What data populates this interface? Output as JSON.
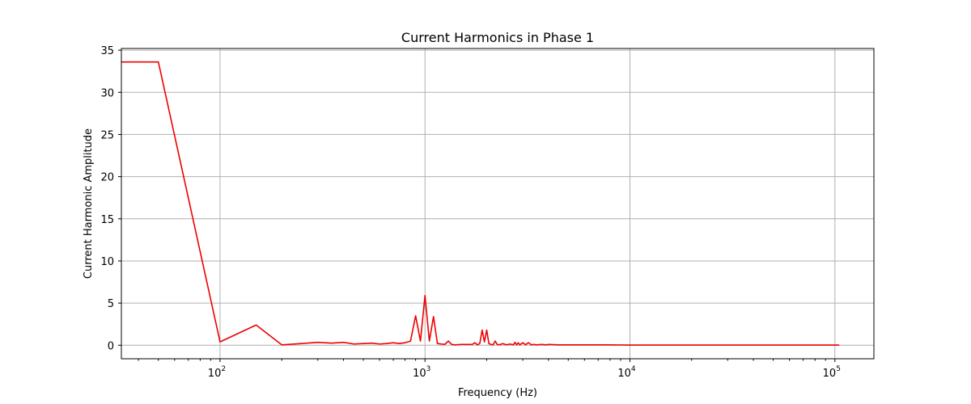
{
  "chart_data": {
    "type": "line",
    "title": "Current Harmonics in Phase 1",
    "xlabel": "Frequency (Hz)",
    "ylabel": "Current Harmonic Amplitude",
    "xscale": "log",
    "xlim": [
      33,
      155000
    ],
    "ylim": [
      -1.6,
      35.2
    ],
    "grid": true,
    "xticks": [
      {
        "base": "10",
        "exp": "2",
        "value": 100
      },
      {
        "base": "10",
        "exp": "3",
        "value": 1000
      },
      {
        "base": "10",
        "exp": "4",
        "value": 10000
      },
      {
        "base": "10",
        "exp": "5",
        "value": 100000
      }
    ],
    "yticks": [
      {
        "label": "0",
        "value": 0
      },
      {
        "label": "5",
        "value": 5
      },
      {
        "label": "10",
        "value": 10
      },
      {
        "label": "15",
        "value": 15
      },
      {
        "label": "20",
        "value": 20
      },
      {
        "label": "25",
        "value": 25
      },
      {
        "label": "30",
        "value": 30
      },
      {
        "label": "35",
        "value": 35
      }
    ],
    "series": [
      {
        "color": "#ee0000",
        "x": [
          33,
          50,
          100,
          150,
          200,
          250,
          300,
          350,
          400,
          450,
          500,
          550,
          600,
          650,
          700,
          750,
          800,
          850,
          900,
          950,
          1000,
          1050,
          1100,
          1150,
          1200,
          1250,
          1300,
          1350,
          1400,
          1500,
          1600,
          1700,
          1750,
          1800,
          1850,
          1900,
          1950,
          2000,
          2050,
          2100,
          2150,
          2200,
          2250,
          2300,
          2400,
          2500,
          2600,
          2700,
          2750,
          2800,
          2850,
          2900,
          3000,
          3100,
          3150,
          3200,
          3300,
          3400,
          3500,
          3700,
          3900,
          4000,
          4500,
          5000,
          6000,
          7000,
          8000,
          10000,
          15000,
          20000,
          30000,
          50000,
          100000,
          105000
        ],
        "y": [
          33.6,
          33.6,
          0.4,
          2.4,
          0.05,
          0.2,
          0.35,
          0.25,
          0.35,
          0.15,
          0.2,
          0.25,
          0.15,
          0.2,
          0.3,
          0.2,
          0.3,
          0.5,
          3.5,
          0.5,
          5.9,
          0.5,
          3.4,
          0.2,
          0.15,
          0.1,
          0.5,
          0.1,
          0.05,
          0.1,
          0.1,
          0.1,
          0.3,
          0.05,
          0.2,
          1.8,
          0.4,
          1.8,
          0.2,
          0.1,
          0.05,
          0.5,
          0.1,
          0.05,
          0.2,
          0.05,
          0.15,
          0.05,
          0.35,
          0.05,
          0.3,
          0.05,
          0.3,
          0.05,
          0.2,
          0.3,
          0.05,
          0.1,
          0.05,
          0.1,
          0.05,
          0.1,
          0.05,
          0.05,
          0.05,
          0.05,
          0.05,
          0.02,
          0.02,
          0.02,
          0.02,
          0.02,
          0.02,
          0.02
        ]
      }
    ]
  }
}
